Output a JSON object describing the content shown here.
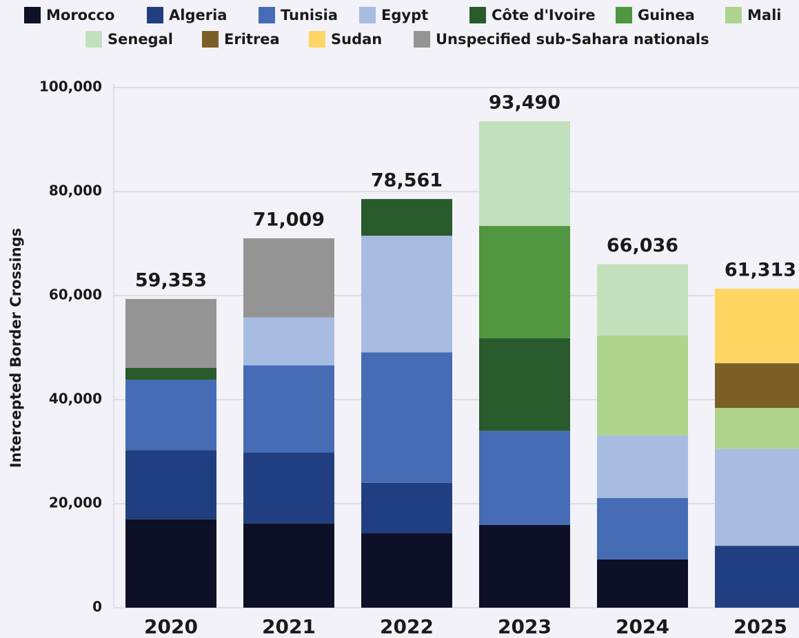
{
  "chart_data": {
    "type": "stacked_bar",
    "y_axis_label": "Intercepted Border Crossings",
    "categories": [
      "2020",
      "2021",
      "2022",
      "2023",
      "2024",
      "2025"
    ],
    "series": [
      {
        "name": "Morocco",
        "color": "#0d1027",
        "values": [
          17000,
          16200,
          14300,
          15900,
          9300,
          null
        ]
      },
      {
        "name": "Algeria",
        "color": "#213f80",
        "values": [
          13300,
          13600,
          9700,
          null,
          null,
          11900
        ]
      },
      {
        "name": "Tunisia",
        "color": "#456cb5",
        "values": [
          13500,
          16800,
          25100,
          18100,
          11800,
          null
        ]
      },
      {
        "name": "Egypt",
        "color": "#a8bce2",
        "values": [
          null,
          9200,
          22400,
          null,
          12000,
          18600
        ]
      },
      {
        "name": "Côte d'Ivoire",
        "color": "#295a2b",
        "values": [
          2300,
          null,
          7061,
          17800,
          null,
          null
        ]
      },
      {
        "name": "Guinea",
        "color": "#519641",
        "values": [
          null,
          null,
          null,
          21600,
          null,
          null
        ]
      },
      {
        "name": "Mali",
        "color": "#aed48c",
        "values": [
          null,
          null,
          null,
          null,
          19200,
          7900
        ]
      },
      {
        "name": "Senegal",
        "color": "#c3e0bd",
        "values": [
          null,
          null,
          null,
          20090,
          13736,
          null
        ]
      },
      {
        "name": "Eritrea",
        "color": "#7c5e27",
        "values": [
          null,
          null,
          null,
          null,
          null,
          8600
        ]
      },
      {
        "name": "Sudan",
        "color": "#ffd663",
        "values": [
          null,
          null,
          null,
          null,
          null,
          14313
        ]
      },
      {
        "name": "Unspecified sub-Sahara nationals",
        "color": "#949494",
        "values": [
          13253,
          15209,
          null,
          null,
          null,
          null
        ]
      }
    ],
    "totals": {
      "values": [
        59353,
        71009,
        78561,
        93490,
        66036,
        61313
      ],
      "value_labels": [
        "59,353",
        "71,009",
        "78,561",
        "93,490",
        "66,036",
        "61,313"
      ]
    },
    "ylim": [
      0,
      100000
    ],
    "yticks": [
      0,
      {
        "value": 20000,
        "label": "20,000"
      },
      {
        "value": 40000,
        "label": "40,000"
      },
      {
        "value": 60000,
        "label": "60,000"
      },
      {
        "value": 80000,
        "label": "80,000"
      },
      {
        "value": 100000,
        "label": "100,000"
      }
    ],
    "grid": true
  }
}
